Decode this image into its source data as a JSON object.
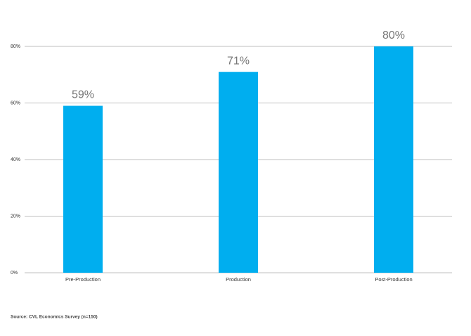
{
  "chart_data": {
    "type": "bar",
    "categories": [
      "Pre-Production",
      "Production",
      "Post-Production"
    ],
    "values": [
      59,
      71,
      80
    ],
    "value_labels": [
      "59%",
      "71%",
      "80%"
    ],
    "color": "#00aeef",
    "ylim": [
      0,
      80
    ],
    "yticks": [
      {
        "value": 0,
        "label": "0%"
      },
      {
        "value": 20,
        "label": "20%"
      },
      {
        "value": 40,
        "label": "40%"
      },
      {
        "value": 60,
        "label": "60%"
      },
      {
        "value": 80,
        "label": "80%"
      }
    ],
    "grid": true,
    "source": "Source: CVL Economics Survey (n=150)"
  }
}
